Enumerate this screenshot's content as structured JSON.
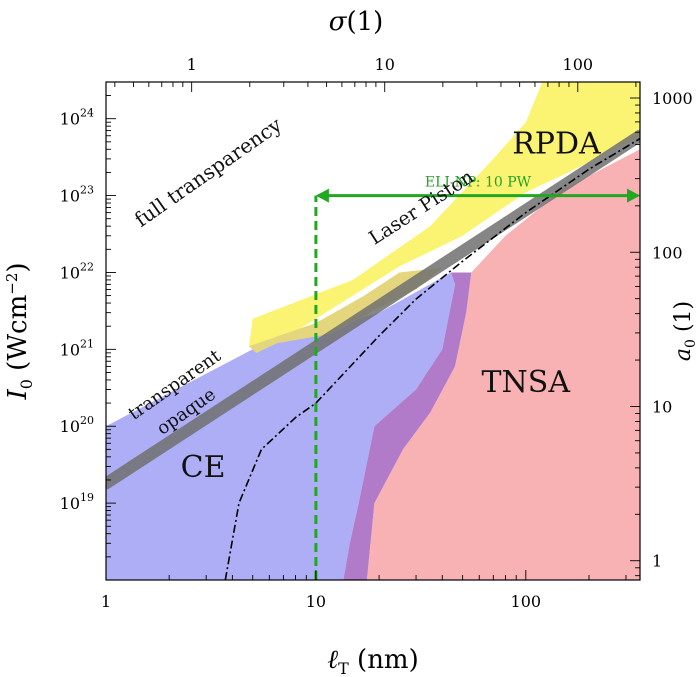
{
  "chart_data": {
    "type": "area",
    "x_axis": {
      "label": "ℓ_T (nm)",
      "label_main": "ℓ",
      "label_sub": "T",
      "label_unit": " (nm)",
      "scale": "log",
      "range": [
        1,
        350
      ],
      "tick_values": [
        1,
        10,
        100
      ],
      "tick_labels": [
        "1",
        "10",
        "100"
      ]
    },
    "x2_axis": {
      "label": "σ(1)",
      "scale": "log",
      "range": [
        0.36,
        210
      ],
      "tick_values": [
        1,
        10,
        100
      ],
      "tick_labels": [
        "1",
        "10",
        "100"
      ]
    },
    "y_axis": {
      "label": "I₀ (Wcm⁻²)",
      "label_main": "I",
      "label_sub": "0",
      "label_unit": " (Wcm",
      "label_sup": "−2",
      "label_close": ")",
      "scale": "log",
      "range": [
        1e+18,
        3e+24
      ],
      "tick_values": [
        1e+19,
        1e+20,
        1e+21,
        1e+22,
        1e+23,
        1e+24
      ],
      "tick_exponents": [
        "19",
        "20",
        "21",
        "22",
        "23",
        "24"
      ],
      "tick_base": "10"
    },
    "y2_axis": {
      "label": "a₀ (1)",
      "label_main": "a",
      "label_sub": "0",
      "label_unit": " (1)",
      "scale": "log",
      "range": [
        0.75,
        1270
      ],
      "tick_values": [
        1,
        10,
        100,
        1000
      ],
      "tick_labels": [
        "1",
        "10",
        "100",
        "1000"
      ]
    },
    "regions": [
      {
        "name": "CE",
        "label": "CE",
        "color": "#aeaef6",
        "polygon": [
          [
            1,
            1e+18
          ],
          [
            1,
            1e+20
          ],
          [
            5,
            1e+21
          ],
          [
            20,
            3e+21
          ],
          [
            44,
            1e+22
          ],
          [
            46,
            7e+21
          ],
          [
            40,
            1e+21
          ],
          [
            30,
            3e+20
          ],
          [
            19,
            1e+20
          ],
          [
            16,
            1e+19
          ],
          [
            14.5,
            3e+18
          ],
          [
            13.5,
            1e+18
          ]
        ]
      },
      {
        "name": "RPDA",
        "label": "RPDA",
        "color": "#fbf472",
        "polygon": [
          [
            5,
            2.5e+21
          ],
          [
            15,
            8e+21
          ],
          [
            35,
            4e+22
          ],
          [
            70,
            3e+23
          ],
          [
            100,
            9e+23
          ],
          [
            120,
            3e+24
          ],
          [
            350,
            3e+24
          ],
          [
            350,
            6e+23
          ],
          [
            160,
            2e+23
          ],
          [
            100,
            1.1e+23
          ],
          [
            50,
            3e+22
          ],
          [
            25,
            1.2e+22
          ],
          [
            10,
            2.5e+21
          ],
          [
            6.5,
            1.2e+21
          ],
          [
            5.2,
            9e+20
          ],
          [
            4.8,
            1.1e+21
          ]
        ]
      },
      {
        "name": "TNSA",
        "label": "TNSA",
        "color": "#f9b2b4",
        "polygon": [
          [
            17.5,
            1e+18
          ],
          [
            19,
            1e+19
          ],
          [
            26,
            5e+19
          ],
          [
            35,
            1.5e+20
          ],
          [
            46,
            6e+20
          ],
          [
            52,
            3e+21
          ],
          [
            55,
            1e+22
          ],
          [
            80,
            3e+22
          ],
          [
            150,
            1.2e+23
          ],
          [
            350,
            4e+23
          ],
          [
            350,
            1e+18
          ]
        ]
      },
      {
        "name": "CE-TNSA overlap",
        "label": "",
        "color": "#b27bc9",
        "polygon": [
          [
            13.5,
            1e+18
          ],
          [
            14.5,
            3e+18
          ],
          [
            16,
            1e+19
          ],
          [
            19,
            1e+20
          ],
          [
            30,
            3e+20
          ],
          [
            40,
            1e+21
          ],
          [
            46,
            7e+21
          ],
          [
            44,
            1e+22
          ],
          [
            55,
            1e+22
          ],
          [
            52,
            3e+21
          ],
          [
            46,
            6e+20
          ],
          [
            35,
            1.5e+20
          ],
          [
            26,
            5e+19
          ],
          [
            19,
            1e+19
          ],
          [
            17.5,
            1e+18
          ]
        ]
      },
      {
        "name": "CE-RPDA overlap",
        "label": "",
        "color": "#e4d67c",
        "polygon": [
          [
            10,
            2.2e+21
          ],
          [
            17,
            5e+21
          ],
          [
            25,
            1e+22
          ],
          [
            40,
            1.15e+22
          ],
          [
            30,
            6e+21
          ],
          [
            20,
            3.5e+21
          ],
          [
            12,
            1.6e+21
          ],
          [
            6.5,
            1.2e+21
          ],
          [
            5.2,
            9e+20
          ],
          [
            4.8,
            1.1e+21
          ]
        ]
      }
    ],
    "lines": [
      {
        "name": "transparency threshold",
        "label": "Laser Piston",
        "color": "#707070",
        "style": "thick-band",
        "points": [
          [
            1,
            1.8e+19
          ],
          [
            350,
            6e+23
          ]
        ]
      },
      {
        "name": "dash-dot boundary",
        "label": "",
        "color": "#000000",
        "style": "dash-dot",
        "points": [
          [
            3.7,
            1e+18
          ],
          [
            4.3,
            1e+19
          ],
          [
            5.5,
            5e+19
          ],
          [
            8,
            1.3e+20
          ],
          [
            10,
            2e+20
          ],
          [
            20,
            1.5e+21
          ],
          [
            30,
            4.5e+21
          ],
          [
            50,
            1.4e+22
          ],
          [
            100,
            6e+22
          ],
          [
            200,
            2.2e+23
          ],
          [
            350,
            5.5e+23
          ]
        ]
      }
    ],
    "markers": [
      {
        "name": "ELI-NP",
        "label": "ELI-NP: 10 PW",
        "color": "#22a722",
        "vertical": {
          "x": 10,
          "y_from": 1e+18,
          "y_to": 1e+23
        },
        "horizontal": {
          "y": 1e+23,
          "x_from": 10,
          "x_to": 350
        }
      }
    ],
    "annotations": [
      {
        "text": "full transparency",
        "x": 3.2,
        "y": 1.7e+23,
        "angle": -35,
        "size": 20
      },
      {
        "text": "RPDA",
        "x": 140,
        "y": 3.5e+23,
        "angle": 0,
        "size": 30
      },
      {
        "text": "Laser Piston",
        "x": 33,
        "y": 6e+22,
        "angle": -33,
        "size": 19
      },
      {
        "text": "transparent",
        "x": 2.2,
        "y": 3e+20,
        "angle": -35,
        "size": 18
      },
      {
        "text": "opaque",
        "x": 2.5,
        "y": 1.35e+20,
        "angle": -35,
        "size": 18
      },
      {
        "text": "CE",
        "x": 2.9,
        "y": 2.2e+19,
        "angle": 0,
        "size": 30
      },
      {
        "text": "TNSA",
        "x": 100,
        "y": 2.8e+20,
        "angle": 0,
        "size": 30
      }
    ]
  }
}
